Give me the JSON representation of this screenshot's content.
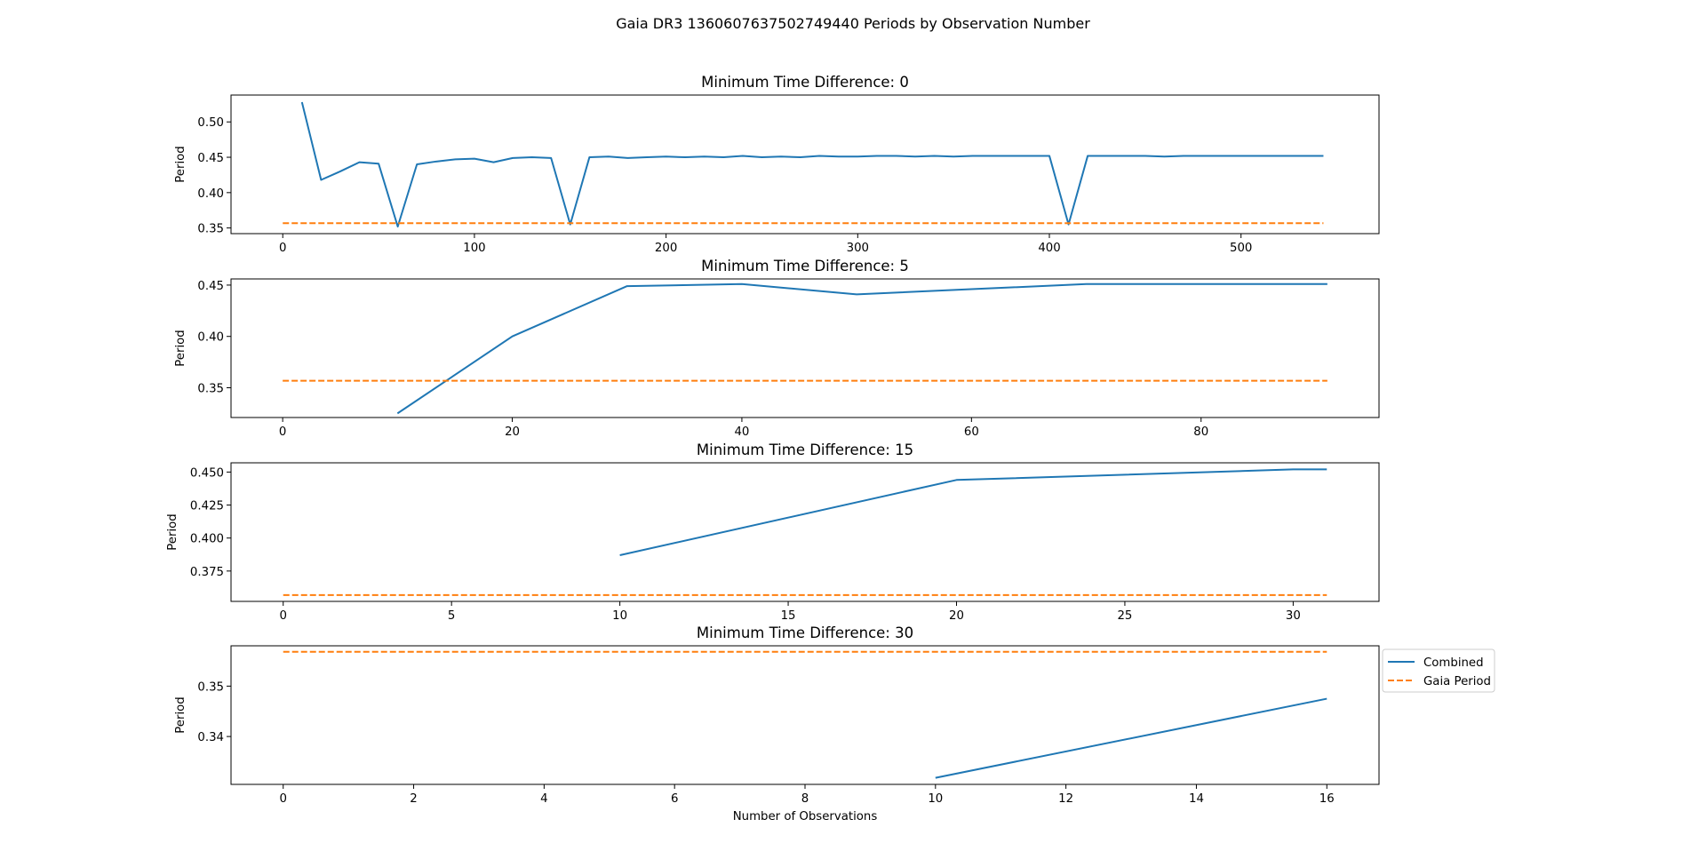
{
  "figure": {
    "title": "Gaia DR3 1360607637502749440 Periods by Observation Number"
  },
  "colors": {
    "combined": "#1f77b4",
    "gaia": "#ff7f0e"
  },
  "legend": {
    "placement": "outside-right-of-last-panel",
    "entries": [
      {
        "label": "Combined",
        "style": "solid",
        "color": "#1f77b4"
      },
      {
        "label": "Gaia Period",
        "style": "dashed",
        "color": "#ff7f0e"
      }
    ]
  },
  "chart_data": [
    {
      "type": "line",
      "title": "Minimum Time Difference: 0",
      "xlabel": "",
      "ylabel": "Period",
      "xlim": [
        -27,
        572
      ],
      "ylim": [
        0.342,
        0.538
      ],
      "xticks": [
        0,
        100,
        200,
        300,
        400,
        500
      ],
      "xtick_labels": [
        "0",
        "100",
        "200",
        "300",
        "400",
        "500"
      ],
      "yticks": [
        0.35,
        0.4,
        0.45,
        0.5
      ],
      "ytick_labels": [
        "0.35",
        "0.40",
        "0.45",
        "0.50"
      ],
      "grid": false,
      "series": [
        {
          "name": "Combined",
          "style": "solid",
          "x": [
            10,
            20,
            30,
            40,
            50,
            60,
            70,
            80,
            90,
            100,
            110,
            120,
            130,
            140,
            150,
            160,
            170,
            180,
            190,
            200,
            210,
            220,
            230,
            240,
            250,
            260,
            270,
            280,
            290,
            300,
            310,
            320,
            330,
            340,
            350,
            360,
            370,
            380,
            390,
            400,
            410,
            420,
            430,
            440,
            450,
            460,
            470,
            480,
            490,
            500,
            510,
            520,
            530,
            543
          ],
          "y": [
            0.528,
            0.418,
            0.43,
            0.443,
            0.441,
            0.352,
            0.44,
            0.444,
            0.447,
            0.448,
            0.443,
            0.449,
            0.45,
            0.449,
            0.355,
            0.45,
            0.451,
            0.449,
            0.45,
            0.451,
            0.45,
            0.451,
            0.45,
            0.452,
            0.45,
            0.451,
            0.45,
            0.452,
            0.451,
            0.451,
            0.452,
            0.452,
            0.451,
            0.452,
            0.451,
            0.452,
            0.452,
            0.452,
            0.452,
            0.452,
            0.355,
            0.452,
            0.452,
            0.452,
            0.452,
            0.451,
            0.452,
            0.452,
            0.452,
            0.452,
            0.452,
            0.452,
            0.452,
            0.452
          ]
        },
        {
          "name": "Gaia Period",
          "style": "dashed",
          "x": [
            0,
            543
          ],
          "y": [
            0.3568,
            0.3568
          ]
        }
      ]
    },
    {
      "type": "line",
      "title": "Minimum Time Difference: 5",
      "xlabel": "",
      "ylabel": "Period",
      "xlim": [
        -4.5,
        95.5
      ],
      "ylim": [
        0.321,
        0.456
      ],
      "xticks": [
        0,
        20,
        40,
        60,
        80
      ],
      "xtick_labels": [
        "0",
        "20",
        "40",
        "60",
        "80"
      ],
      "yticks": [
        0.35,
        0.4,
        0.45
      ],
      "ytick_labels": [
        "0.35",
        "0.40",
        "0.45"
      ],
      "grid": false,
      "series": [
        {
          "name": "Combined",
          "style": "solid",
          "x": [
            10,
            20,
            30,
            40,
            50,
            60,
            70,
            80,
            91
          ],
          "y": [
            0.325,
            0.4,
            0.449,
            0.451,
            0.441,
            0.446,
            0.451,
            0.451,
            0.451
          ]
        },
        {
          "name": "Gaia Period",
          "style": "dashed",
          "x": [
            0,
            91
          ],
          "y": [
            0.3568,
            0.3568
          ]
        }
      ]
    },
    {
      "type": "line",
      "title": "Minimum Time Difference: 15",
      "xlabel": "",
      "ylabel": "Period",
      "xlim": [
        -1.55,
        32.55
      ],
      "ylim": [
        0.352,
        0.457
      ],
      "xticks": [
        0,
        5,
        10,
        15,
        20,
        25,
        30
      ],
      "xtick_labels": [
        "0",
        "5",
        "10",
        "15",
        "20",
        "25",
        "30"
      ],
      "yticks": [
        0.375,
        0.4,
        0.425,
        0.45
      ],
      "ytick_labels": [
        "0.375",
        "0.400",
        "0.425",
        "0.450"
      ],
      "grid": false,
      "series": [
        {
          "name": "Combined",
          "style": "solid",
          "x": [
            10,
            20,
            30,
            31
          ],
          "y": [
            0.387,
            0.444,
            0.452,
            0.452
          ]
        },
        {
          "name": "Gaia Period",
          "style": "dashed",
          "x": [
            0,
            31
          ],
          "y": [
            0.3568,
            0.3568
          ]
        }
      ]
    },
    {
      "type": "line",
      "title": "Minimum Time Difference: 30",
      "xlabel": "Number of Observations",
      "ylabel": "Period",
      "xlim": [
        -0.8,
        16.8
      ],
      "ylim": [
        0.3305,
        0.358
      ],
      "xticks": [
        0,
        2,
        4,
        6,
        8,
        10,
        12,
        14,
        16
      ],
      "xtick_labels": [
        "0",
        "2",
        "4",
        "6",
        "8",
        "10",
        "12",
        "14",
        "16"
      ],
      "yticks": [
        0.34,
        0.35
      ],
      "ytick_labels": [
        "0.34",
        "0.35"
      ],
      "grid": false,
      "series": [
        {
          "name": "Combined",
          "style": "solid",
          "x": [
            10,
            16
          ],
          "y": [
            0.3318,
            0.3475
          ]
        },
        {
          "name": "Gaia Period",
          "style": "dashed",
          "x": [
            0,
            16
          ],
          "y": [
            0.3568,
            0.3568
          ]
        }
      ]
    }
  ]
}
